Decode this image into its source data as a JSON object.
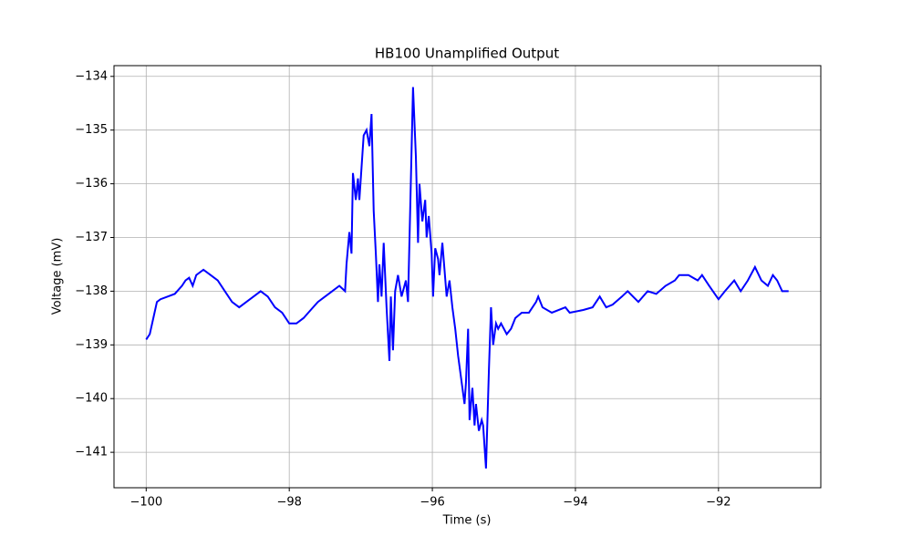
{
  "chart_data": {
    "type": "line",
    "title": "HB100 Unamplified Output",
    "xlabel": "Time (s)",
    "ylabel": "Voltage (mV)",
    "color": "#0000ff",
    "grid": true,
    "xlim": [
      -100.45,
      -90.57
    ],
    "ylim": [
      -141.66,
      -133.8
    ],
    "xticks": [
      {
        "value": -100,
        "label": "−100"
      },
      {
        "value": -98,
        "label": "−98"
      },
      {
        "value": -96,
        "label": "−96"
      },
      {
        "value": -94,
        "label": "−94"
      },
      {
        "value": -92,
        "label": "−92"
      }
    ],
    "yticks": [
      {
        "value": -141,
        "label": "−141"
      },
      {
        "value": -140,
        "label": "−140"
      },
      {
        "value": -139,
        "label": "−139"
      },
      {
        "value": -138,
        "label": "−138"
      },
      {
        "value": -137,
        "label": "−137"
      },
      {
        "value": -136,
        "label": "−136"
      },
      {
        "value": -135,
        "label": "−135"
      },
      {
        "value": -134,
        "label": "−134"
      }
    ],
    "x": [
      -100,
      -99.95,
      -99.9,
      -99.85,
      -99.8,
      -99.7,
      -99.6,
      -99.5,
      -99.45,
      -99.4,
      -99.35,
      -99.3,
      -99.2,
      -99.1,
      -99.0,
      -98.9,
      -98.8,
      -98.7,
      -98.6,
      -98.5,
      -98.4,
      -98.3,
      -98.2,
      -98.1,
      -98.0,
      -97.9,
      -97.8,
      -97.7,
      -97.6,
      -97.5,
      -97.4,
      -97.3,
      -97.22,
      -97.2,
      -97.16,
      -97.13,
      -97.11,
      -97.07,
      -97.04,
      -97.02,
      -96.96,
      -96.92,
      -96.88,
      -96.85,
      -96.82,
      -96.79,
      -96.76,
      -96.74,
      -96.71,
      -96.68,
      -96.64,
      -96.6,
      -96.58,
      -96.55,
      -96.52,
      -96.48,
      -96.43,
      -96.37,
      -96.34,
      -96.31,
      -96.27,
      -96.23,
      -96.2,
      -96.18,
      -96.14,
      -96.1,
      -96.08,
      -96.05,
      -96.01,
      -95.99,
      -95.96,
      -95.92,
      -95.9,
      -95.86,
      -95.83,
      -95.8,
      -95.76,
      -95.72,
      -95.68,
      -95.64,
      -95.6,
      -95.55,
      -95.53,
      -95.5,
      -95.48,
      -95.44,
      -95.41,
      -95.39,
      -95.35,
      -95.31,
      -95.29,
      -95.25,
      -95.21,
      -95.18,
      -95.15,
      -95.11,
      -95.08,
      -95.04,
      -95.0,
      -94.96,
      -94.9,
      -94.84,
      -94.75,
      -94.65,
      -94.55,
      -94.52,
      -94.46,
      -94.33,
      -94.14,
      -94.08,
      -93.89,
      -93.76,
      -93.66,
      -93.57,
      -93.48,
      -93.35,
      -93.27,
      -93.12,
      -92.99,
      -92.87,
      -92.74,
      -92.61,
      -92.55,
      -92.42,
      -92.29,
      -92.23,
      -92.13,
      -92.0,
      -91.91,
      -91.78,
      -91.69,
      -91.59,
      -91.49,
      -91.4,
      -91.31,
      -91.24,
      -91.18,
      -91.11,
      -91.02
    ],
    "values": [
      -138.9,
      -138.8,
      -138.5,
      -138.2,
      -138.15,
      -138.1,
      -138.05,
      -137.9,
      -137.8,
      -137.75,
      -137.9,
      -137.7,
      -137.6,
      -137.7,
      -137.8,
      -138.0,
      -138.2,
      -138.3,
      -138.2,
      -138.1,
      -138.0,
      -138.1,
      -138.3,
      -138.4,
      -138.6,
      -138.6,
      -138.5,
      -138.35,
      -138.2,
      -138.1,
      -138.0,
      -137.9,
      -138.0,
      -137.5,
      -136.9,
      -137.3,
      -135.8,
      -136.3,
      -135.9,
      -136.3,
      -135.1,
      -135.0,
      -135.3,
      -134.7,
      -136.5,
      -137.3,
      -138.2,
      -137.5,
      -138.1,
      -137.1,
      -138.3,
      -139.3,
      -138.1,
      -139.1,
      -138.0,
      -137.7,
      -138.1,
      -137.8,
      -138.2,
      -136.5,
      -134.2,
      -135.5,
      -137.1,
      -136.0,
      -136.7,
      -136.3,
      -137.0,
      -136.6,
      -137.3,
      -138.1,
      -137.2,
      -137.4,
      -137.7,
      -137.1,
      -137.6,
      -138.1,
      -137.8,
      -138.3,
      -138.7,
      -139.2,
      -139.6,
      -140.1,
      -139.7,
      -138.7,
      -140.4,
      -139.8,
      -140.5,
      -140.1,
      -140.6,
      -140.4,
      -140.5,
      -141.3,
      -139.5,
      -138.3,
      -139.0,
      -138.6,
      -138.7,
      -138.6,
      -138.7,
      -138.8,
      -138.7,
      -138.5,
      -138.4,
      -138.4,
      -138.2,
      -138.1,
      -138.3,
      -138.4,
      -138.3,
      -138.4,
      -138.35,
      -138.3,
      -138.1,
      -138.3,
      -138.25,
      -138.1,
      -138.0,
      -138.2,
      -138.0,
      -138.05,
      -137.9,
      -137.8,
      -137.7,
      -137.7,
      -137.8,
      -137.7,
      -137.9,
      -138.15,
      -138.0,
      -137.8,
      -138.0,
      -137.8,
      -137.55,
      -137.8,
      -137.9,
      -137.7,
      -137.8,
      -138.0,
      -138.0
    ]
  }
}
